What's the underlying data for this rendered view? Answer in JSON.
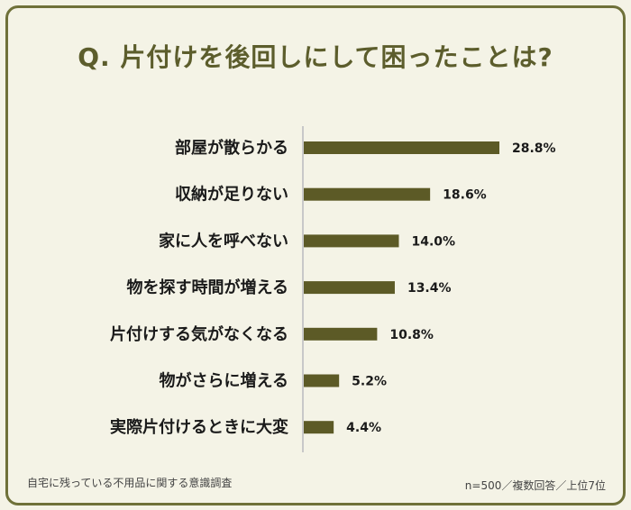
{
  "title": "Q. 片付けを後回しにして困ったことは?",
  "chart_data": {
    "type": "bar",
    "orientation": "horizontal",
    "categories": [
      "部屋が散らかる",
      "収納が足りない",
      "家に人を呼べない",
      "物を探す時間が増える",
      "片付けする気がなくなる",
      "物がさらに増える",
      "実際片付けるときに大変"
    ],
    "values": [
      28.8,
      18.6,
      14.0,
      13.4,
      10.8,
      5.2,
      4.4
    ],
    "value_labels": [
      "28.8%",
      "18.6%",
      "14.0%",
      "13.4%",
      "10.8%",
      "5.2%",
      "4.4%"
    ],
    "unit": "%",
    "xlim": [
      0,
      35
    ],
    "bar_color": "#5c5a26",
    "grid": false
  },
  "footnote": {
    "left": "自宅に残っている不用品に関する意識調査",
    "right": "n=500／複数回答／上位7位"
  },
  "colors": {
    "background": "#f4f3e6",
    "border": "#6f7139",
    "title": "#5c5d2c"
  }
}
